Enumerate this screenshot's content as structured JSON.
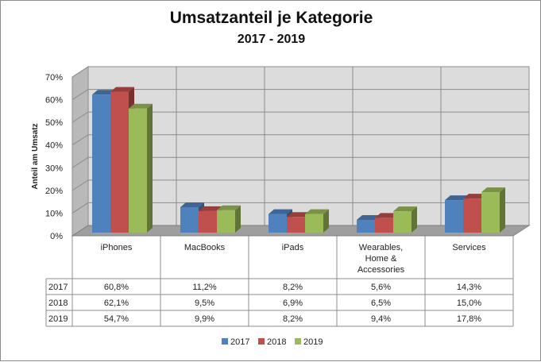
{
  "chart_data": {
    "type": "bar",
    "title": "Umsatzanteil je Kategorie",
    "subtitle": "2017 - 2019",
    "ylabel": "Anteil am Umsatz",
    "ylim": [
      0,
      70
    ],
    "y_ticks": [
      "0%",
      "10%",
      "20%",
      "30%",
      "40%",
      "50%",
      "60%",
      "70%"
    ],
    "categories": [
      [
        "iPhones"
      ],
      [
        "MacBooks"
      ],
      [
        "iPads"
      ],
      [
        "Wearables,",
        "Home &",
        "Accessories"
      ],
      [
        "Services"
      ]
    ],
    "series": [
      {
        "name": "2017",
        "color": "#4f81bd",
        "values": [
          60.8,
          11.2,
          8.2,
          5.6,
          14.3
        ],
        "labels": [
          "60,8%",
          "11,2%",
          "8,2%",
          "5,6%",
          "14,3%"
        ]
      },
      {
        "name": "2018",
        "color": "#c0504d",
        "values": [
          62.1,
          9.5,
          6.9,
          6.5,
          15.0
        ],
        "labels": [
          "62,1%",
          "9,5%",
          "6,9%",
          "6,5%",
          "15,0%"
        ]
      },
      {
        "name": "2019",
        "color": "#9bbb59",
        "values": [
          54.7,
          9.9,
          8.2,
          9.4,
          17.8
        ],
        "labels": [
          "54,7%",
          "9,9%",
          "8,2%",
          "9,4%",
          "17,8%"
        ]
      }
    ],
    "grid": true,
    "legend_position": "bottom",
    "data_table": true,
    "style": "3d-clustered-column"
  }
}
